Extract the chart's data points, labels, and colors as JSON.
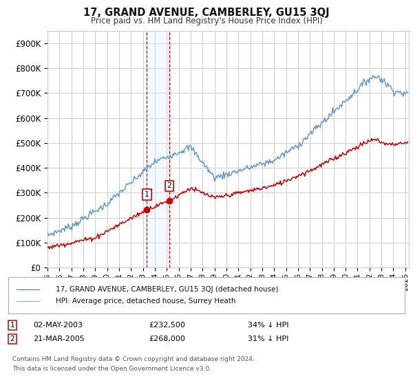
{
  "title": "17, GRAND AVENUE, CAMBERLEY, GU15 3QJ",
  "subtitle": "Price paid vs. HM Land Registry's House Price Index (HPI)",
  "ylabel_ticks": [
    "£0",
    "£100K",
    "£200K",
    "£300K",
    "£400K",
    "£500K",
    "£600K",
    "£700K",
    "£800K",
    "£900K"
  ],
  "ytick_values": [
    0,
    100000,
    200000,
    300000,
    400000,
    500000,
    600000,
    700000,
    800000,
    900000
  ],
  "ylim": [
    0,
    950000
  ],
  "xlim_start": 1995.0,
  "xlim_end": 2025.3,
  "legend_line1": "17, GRAND AVENUE, CAMBERLEY, GU15 3QJ (detached house)",
  "legend_line2": "HPI: Average price, detached house, Surrey Heath",
  "sale1_date": "02-MAY-2003",
  "sale1_price": "£232,500",
  "sale1_hpi": "34% ↓ HPI",
  "sale1_year": 2003.33,
  "sale1_value": 232500,
  "sale2_date": "21-MAR-2005",
  "sale2_price": "£268,000",
  "sale2_hpi": "31% ↓ HPI",
  "sale2_year": 2005.21,
  "sale2_value": 268000,
  "footnote_line1": "Contains HM Land Registry data © Crown copyright and database right 2024.",
  "footnote_line2": "This data is licensed under the Open Government Licence v3.0.",
  "hpi_color": "#6699cc",
  "price_color": "#cc0000",
  "shade_color": "#ddeeff",
  "grid_color": "#cccccc",
  "background_color": "#ffffff"
}
